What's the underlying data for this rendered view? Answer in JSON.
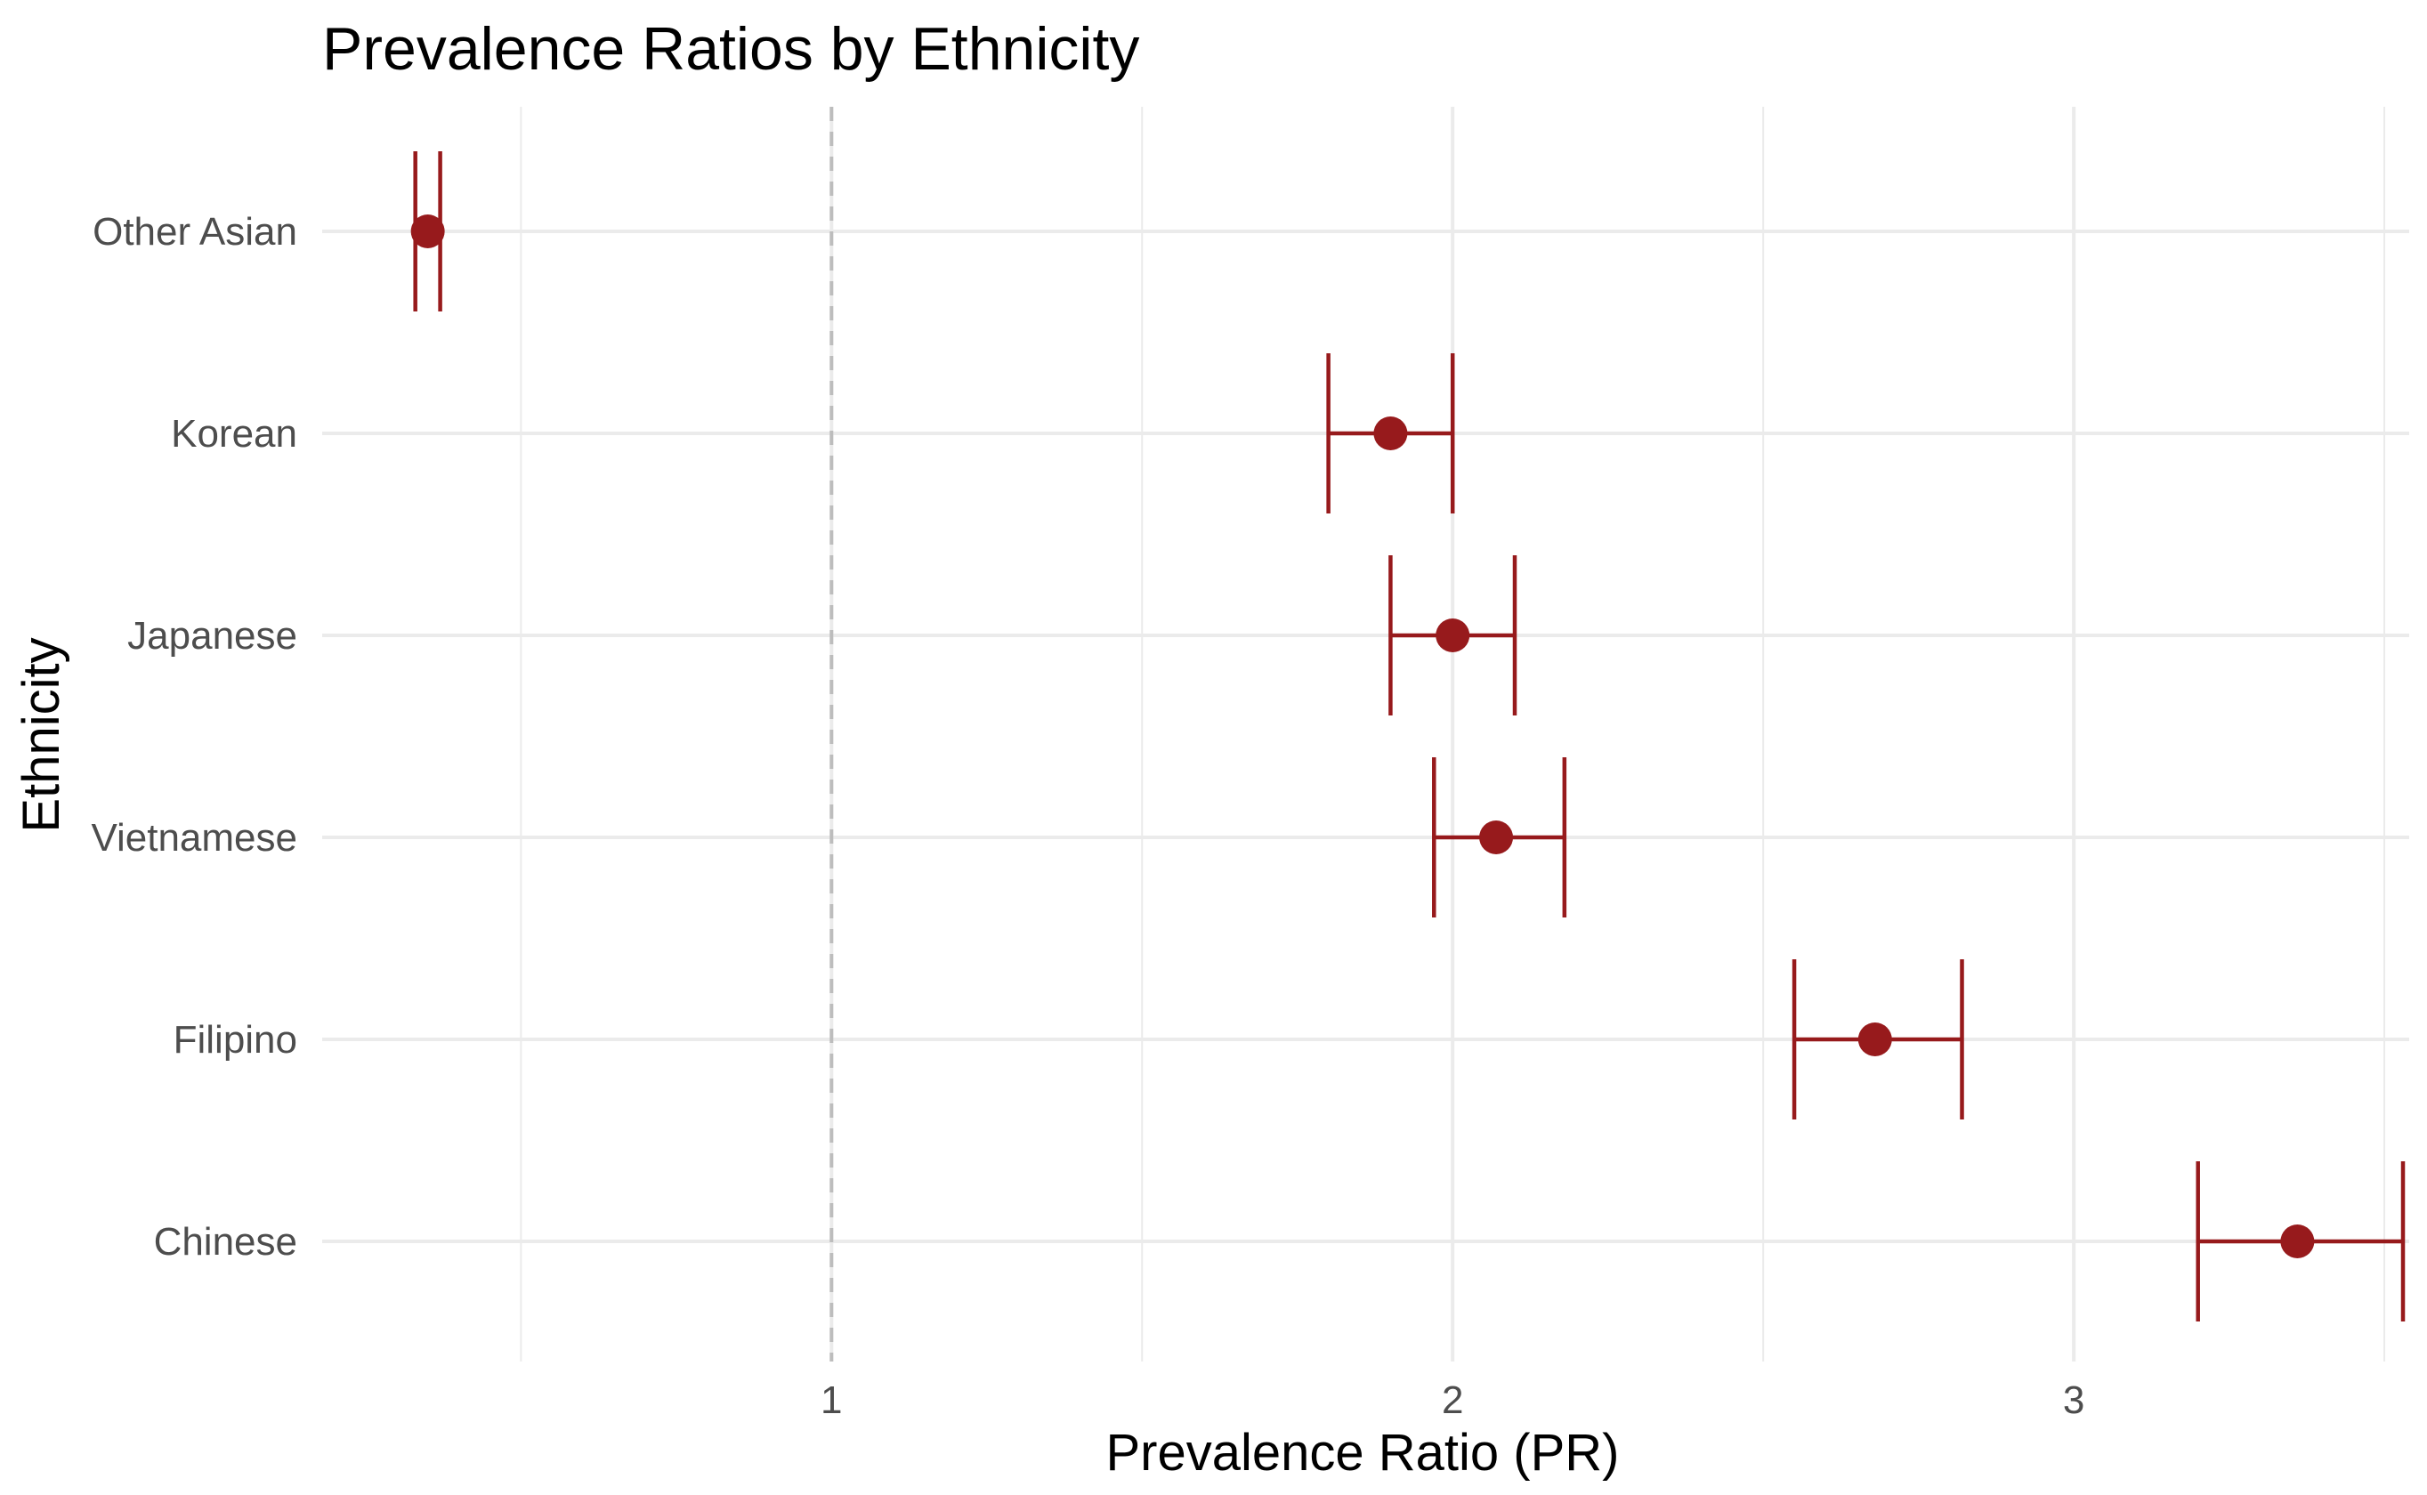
{
  "chart_data": {
    "type": "scatter",
    "title": "Prevalence Ratios by Ethnicity",
    "xlabel": "Prevalence Ratio (PR)",
    "ylabel": "Ethnicity",
    "categories": [
      "Chinese",
      "Filipino",
      "Vietnamese",
      "Japanese",
      "Korean",
      "Other Asian"
    ],
    "series": [
      {
        "values": [
          3.36,
          2.68,
          2.07,
          2.0,
          1.9,
          0.35
        ],
        "lower": [
          3.2,
          2.55,
          1.97,
          1.9,
          1.8,
          0.33
        ],
        "upper": [
          3.53,
          2.82,
          2.18,
          2.1,
          2.0,
          0.37
        ]
      }
    ],
    "xlim": [
      0.18,
      3.54
    ],
    "xticks": [
      1,
      2,
      3
    ],
    "xtick_labels": [
      "1",
      "2",
      "3"
    ],
    "reference_line": {
      "x": 1,
      "style": "dashed"
    },
    "grid": true,
    "legend": "none",
    "colors": {
      "point": "#971a1c",
      "errorbar": "#971a1c",
      "grid": "#ebebeb",
      "reference": "#bdbdbd"
    }
  }
}
